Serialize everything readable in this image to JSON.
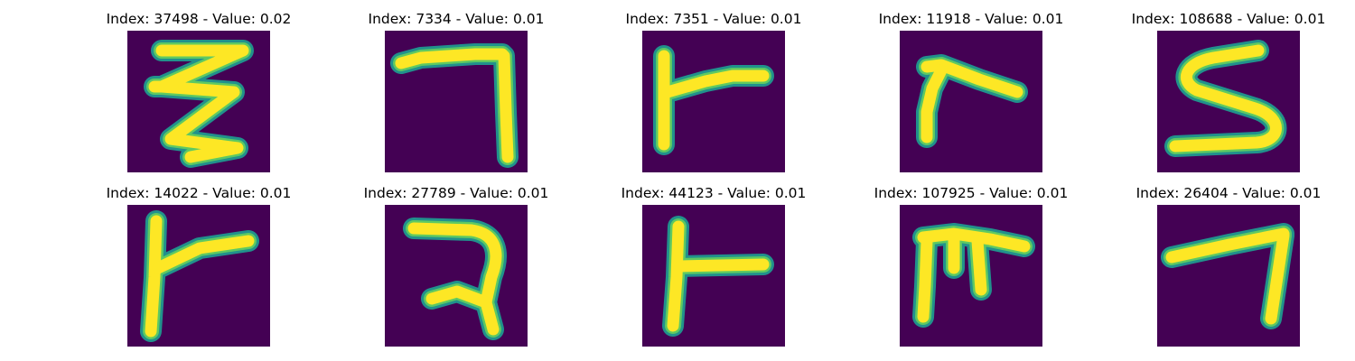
{
  "colors": {
    "background": "#440154",
    "stroke_core": "#fde725",
    "stroke_mid": "#5ec962",
    "stroke_edge": "#21918c"
  },
  "panels": [
    {
      "title": "Index: 37498 - Value: 0.02",
      "glyph": "zigzag-stroke"
    },
    {
      "title": "Index: 7334 - Value: 0.01",
      "glyph": "hook-stroke"
    },
    {
      "title": "Index: 7351 - Value: 0.01",
      "glyph": "flag-stroke"
    },
    {
      "title": "Index: 11918 - Value: 0.01",
      "glyph": "angle-stroke"
    },
    {
      "title": "Index: 108688 - Value: 0.01",
      "glyph": "s-stroke"
    },
    {
      "title": "Index: 14022 - Value: 0.01",
      "glyph": "flag-stroke"
    },
    {
      "title": "Index: 27789 - Value: 0.01",
      "glyph": "r-stroke"
    },
    {
      "title": "Index: 44123 - Value: 0.01",
      "glyph": "t-stroke"
    },
    {
      "title": "Index: 107925 - Value: 0.01",
      "glyph": "m-stroke"
    },
    {
      "title": "Index: 26404 - Value: 0.01",
      "glyph": "hook-stroke"
    }
  ]
}
